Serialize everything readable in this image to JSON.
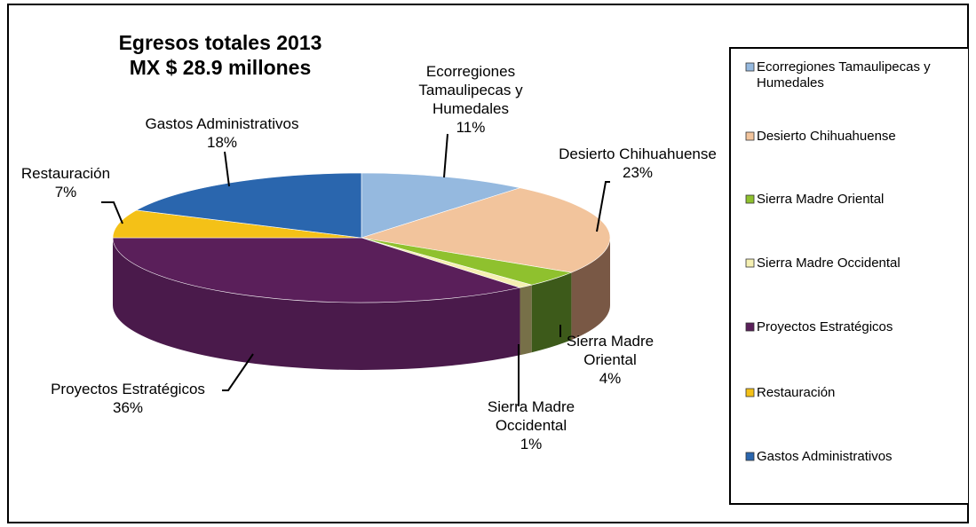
{
  "chart_data": {
    "type": "pie",
    "title": "Egresos totales 2013",
    "subtitle": "MX $ 28.9 millones",
    "unit": "%",
    "slices": [
      {
        "label_lines": [
          "Ecorregiones",
          "Tamaulipecas y",
          "Humedales"
        ],
        "legend_lines": [
          "Ecorregiones Tamaulipecas y",
          "Humedales"
        ],
        "value": 11,
        "value_label": "11%",
        "color": "#95b9df",
        "side": "#6d8fb3"
      },
      {
        "label_lines": [
          "Desierto Chihuahuense"
        ],
        "legend_lines": [
          "Desierto Chihuahuense"
        ],
        "value": 23,
        "value_label": "23%",
        "color": "#f2c49c",
        "side": "#795845"
      },
      {
        "label_lines": [
          "Sierra Madre",
          "Oriental"
        ],
        "legend_lines": [
          "Sierra Madre Oriental"
        ],
        "value": 4,
        "value_label": "4%",
        "color": "#8fc12e",
        "side": "#3d5a1a"
      },
      {
        "label_lines": [
          "Sierra Madre",
          "Occidental"
        ],
        "legend_lines": [
          "Sierra Madre Occidental"
        ],
        "value": 1,
        "value_label": "1%",
        "color": "#f5f0b2",
        "side": "#777048"
      },
      {
        "label_lines": [
          "Proyectos Estratégicos"
        ],
        "legend_lines": [
          "Proyectos Estratégicos"
        ],
        "value": 36,
        "value_label": "36%",
        "color": "#5a1f5a",
        "side": "#4a1a4b"
      },
      {
        "label_lines": [
          "Restauración"
        ],
        "legend_lines": [
          "Restauración"
        ],
        "value": 7,
        "value_label": "7%",
        "color": "#f4c117",
        "side": "#a8850e"
      },
      {
        "label_lines": [
          "Gastos Administrativos"
        ],
        "legend_lines": [
          "Gastos Administrativos"
        ],
        "value": 18,
        "value_label": "18%",
        "color": "#2a66ae",
        "side": "#1d4a80"
      }
    ],
    "legend_position": "right",
    "three_d": true
  }
}
